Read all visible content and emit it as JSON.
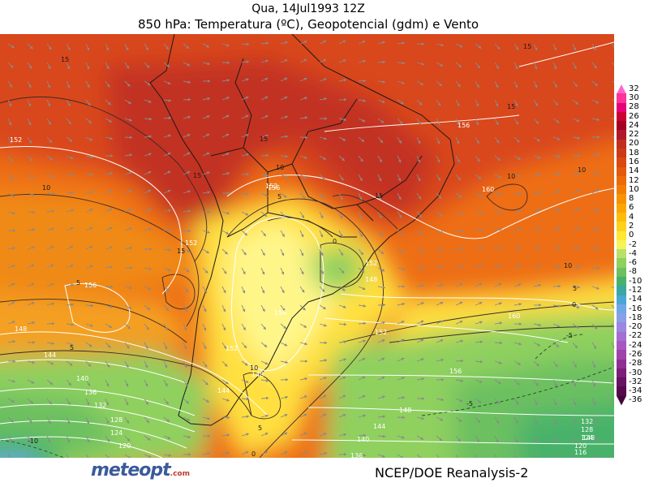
{
  "title": {
    "line1": "Qua, 14Jul1993 12Z",
    "line2": "850 hPa: Temperatura (ºC), Geopotencial (gdm) e Vento"
  },
  "colorbar": {
    "labels": [
      "32",
      "30",
      "28",
      "26",
      "24",
      "22",
      "20",
      "18",
      "16",
      "14",
      "12",
      "10",
      "8",
      "6",
      "4",
      "2",
      "0",
      "-2",
      "-4",
      "-6",
      "-8",
      "-10",
      "-12",
      "-14",
      "-16",
      "-18",
      "-20",
      "-22",
      "-24",
      "-26",
      "-28",
      "-30",
      "-32",
      "-34",
      "-36"
    ],
    "colors": [
      "#ff66cc",
      "#ff3399",
      "#e6007a",
      "#cc0033",
      "#a50021",
      "#b2182b",
      "#c0301f",
      "#cc3a18",
      "#d84a12",
      "#e35a0c",
      "#ec6a08",
      "#f27d05",
      "#f79203",
      "#fba602",
      "#fdbc05",
      "#fed21a",
      "#ffe733",
      "#f6f25a",
      "#b9e06a",
      "#8fd05e",
      "#6cc060",
      "#48b26a",
      "#39a8a0",
      "#4aa6d6",
      "#6fa8e6",
      "#8a9fe8",
      "#9a87e0",
      "#a46fd2",
      "#a858c0",
      "#a042aa",
      "#902e92",
      "#7c1e7a",
      "#681262",
      "#560a4e",
      "#44053c"
    ]
  },
  "map": {
    "wind_direction": "northwest-to-southeast arrows",
    "temperature_labels": [
      {
        "text": "15"
      },
      {
        "text": "15"
      },
      {
        "text": "15"
      },
      {
        "text": "15"
      },
      {
        "text": "15"
      },
      {
        "text": "15"
      },
      {
        "text": "15"
      },
      {
        "text": "10"
      },
      {
        "text": "10"
      },
      {
        "text": "10"
      },
      {
        "text": "10"
      },
      {
        "text": "10"
      },
      {
        "text": "10"
      },
      {
        "text": "5"
      },
      {
        "text": "5"
      },
      {
        "text": "5"
      },
      {
        "text": "5"
      },
      {
        "text": "5"
      },
      {
        "text": "0"
      },
      {
        "text": "0"
      },
      {
        "text": "0"
      },
      {
        "text": "-5"
      },
      {
        "text": "-5"
      },
      {
        "text": "-10"
      }
    ],
    "geopotential_labels": [
      {
        "text": "152"
      },
      {
        "text": "152"
      },
      {
        "text": "152"
      },
      {
        "text": "152"
      },
      {
        "text": "152"
      },
      {
        "text": "152"
      },
      {
        "text": "156"
      },
      {
        "text": "156"
      },
      {
        "text": "156"
      },
      {
        "text": "156"
      },
      {
        "text": "156"
      },
      {
        "text": "160"
      },
      {
        "text": "160"
      },
      {
        "text": "148"
      },
      {
        "text": "148"
      },
      {
        "text": "148"
      },
      {
        "text": "148"
      },
      {
        "text": "148"
      },
      {
        "text": "144"
      },
      {
        "text": "144"
      },
      {
        "text": "144"
      },
      {
        "text": "140"
      },
      {
        "text": "140"
      },
      {
        "text": "136"
      },
      {
        "text": "136"
      },
      {
        "text": "132"
      },
      {
        "text": "132"
      },
      {
        "text": "128"
      },
      {
        "text": "128"
      },
      {
        "text": "124"
      },
      {
        "text": "124"
      },
      {
        "text": "120"
      },
      {
        "text": "120"
      },
      {
        "text": "116"
      }
    ]
  },
  "footer": {
    "logo_main": "meteopt",
    "logo_suffix": ".com",
    "credit": "NCEP/DOE Reanalysis-2"
  }
}
